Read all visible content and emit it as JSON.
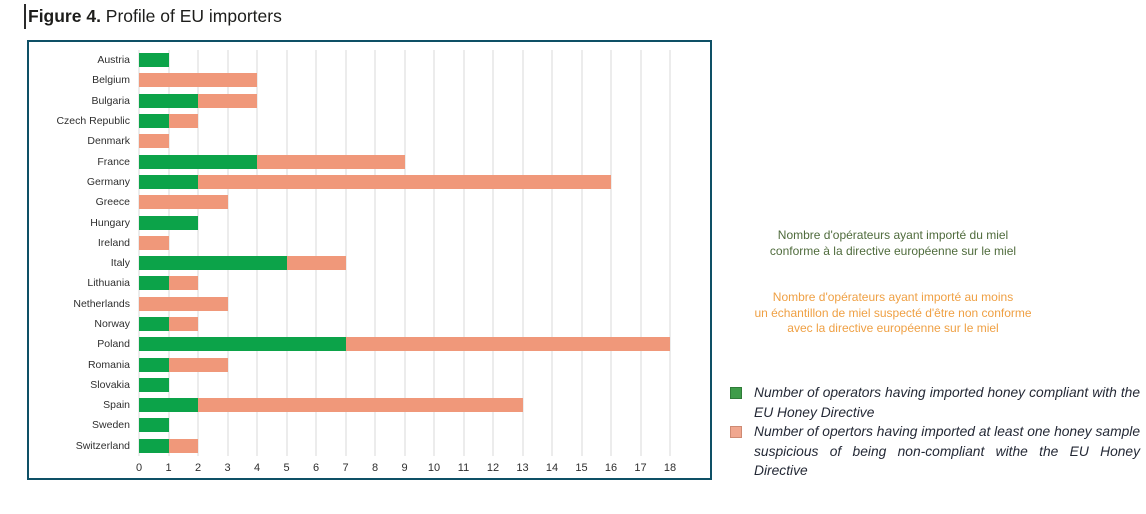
{
  "page": {
    "title_prefix": "Figure 4.",
    "title_text": " Profile of EU importers"
  },
  "colors": {
    "bar_compliant_green": "#0ca349",
    "bar_suspicious_salmon": "#f0987a",
    "chart_border_teal": "#0e5066",
    "gridline_gray": "#d9d9d9",
    "french_caption_green": "#4f6b3c",
    "french_caption_orange": "#efa044",
    "legend_text_dark": "#242936"
  },
  "french_captions": {
    "compliant": "Nombre d'opérateurs ayant importé du miel\nconforme à la directive européenne sur le miel",
    "suspicious": "Nombre d'opérateurs ayant importé au moins\nun échantillon de miel suspecté d'être non conforme\navec la directive européenne sur le miel"
  },
  "english_legend": {
    "compliant": "Number of operators having imported honey compliant with the EU Honey Directive",
    "suspicious": "Number of opertors having imported at least one honey sample suspicious of being non-compliant withe the EU Honey Directive"
  },
  "chart_data": {
    "type": "bar",
    "orientation": "horizontal",
    "stacked": true,
    "title": "Figure 4. Profile of EU importers",
    "categories": [
      "Austria",
      "Belgium",
      "Bulgaria",
      "Czech Republic",
      "Denmark",
      "France",
      "Germany",
      "Greece",
      "Hungary",
      "Ireland",
      "Italy",
      "Lithuania",
      "Netherlands",
      "Norway",
      "Poland",
      "Romania",
      "Slovakia",
      "Spain",
      "Sweden",
      "Switzerland"
    ],
    "series": [
      {
        "name": "Number of operators having imported honey compliant with the EU Honey Directive",
        "color": "#0ca349",
        "values": [
          1,
          0,
          2,
          1,
          0,
          4,
          2,
          0,
          2,
          0,
          5,
          1,
          0,
          1,
          7,
          1,
          1,
          2,
          1,
          1
        ]
      },
      {
        "name": "Number of opertors having imported at least one honey sample suspicious of being non-compliant withe the EU Honey Directive",
        "color": "#f0987a",
        "values": [
          0,
          4,
          2,
          1,
          1,
          5,
          14,
          3,
          0,
          1,
          2,
          1,
          3,
          1,
          11,
          2,
          0,
          11,
          0,
          1
        ]
      }
    ],
    "totals": [
      1,
      4,
      4,
      2,
      1,
      9,
      16,
      3,
      2,
      1,
      7,
      2,
      3,
      2,
      18,
      3,
      1,
      13,
      1,
      2
    ],
    "xlim": [
      0,
      18
    ],
    "xticks": [
      0,
      1,
      2,
      3,
      4,
      5,
      6,
      7,
      8,
      9,
      10,
      11,
      12,
      13,
      14,
      15,
      16,
      17,
      18
    ],
    "xlabel": "",
    "ylabel": "",
    "grid": true,
    "legend_position": "right"
  }
}
